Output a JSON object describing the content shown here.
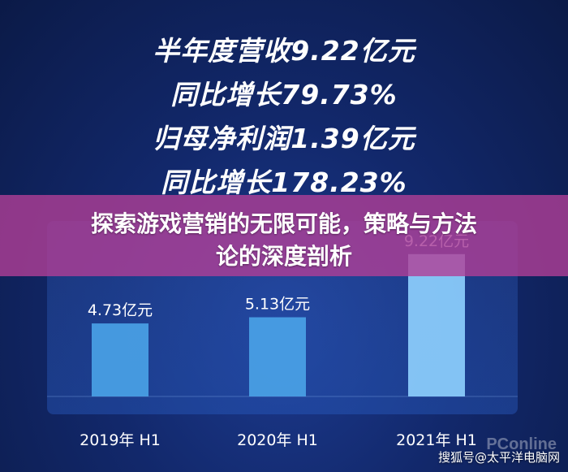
{
  "headlines": [
    "半年度营收9.22亿元",
    "同比增长79.73%",
    "归母净利润1.39亿元",
    "同比增长178.23%"
  ],
  "banner": {
    "line1": "探索游戏营销的无限可能，策略与方法",
    "line2": "论的深度剖析"
  },
  "watermark": {
    "text": "搜狐号@太平洋电脑网",
    "logo": "PConline"
  },
  "chart_data": {
    "type": "bar",
    "categories": [
      "2019年 H1",
      "2020年 H1",
      "2021年 H1"
    ],
    "values": [
      4.73,
      5.13,
      9.22
    ],
    "data_labels": [
      "4.73亿元",
      "5.13亿元",
      "9.22亿元"
    ],
    "ylim": [
      0,
      10
    ],
    "grid": false,
    "bar_color": "#4aa3e8",
    "bar_color_highlight": "#8fd2ff"
  }
}
